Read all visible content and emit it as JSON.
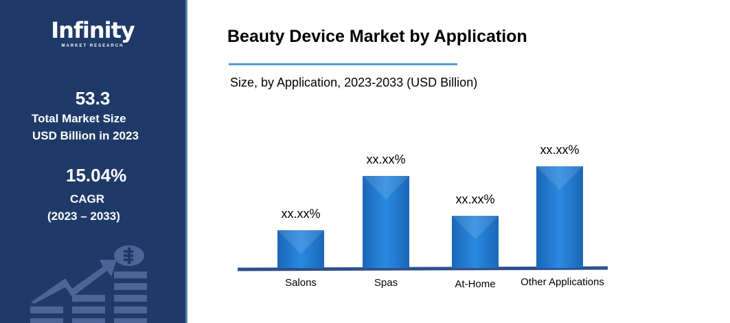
{
  "sidebar": {
    "logo": {
      "name": "Infinity",
      "tagline": "MARKET RESEARCH"
    },
    "market_size": {
      "value": "53.3",
      "label1": "Total Market Size",
      "label2": "USD Billion in 2023"
    },
    "cagr": {
      "value": "15.04%",
      "label": "CAGR",
      "period": "(2023 – 2033)"
    }
  },
  "chart_data": {
    "type": "bar",
    "title": "Beauty Device Market by Application",
    "subtitle": "Size, by Application, 2023-2033 (USD Billion)",
    "categories": [
      "Salons",
      "Spas",
      "At-Home",
      "Other Applications"
    ],
    "values": [
      55,
      134,
      76,
      148
    ],
    "data_labels": [
      "xx.xx%",
      "xx.xx%",
      "xx.xx%",
      "xx.xx%"
    ],
    "ylim": [
      0,
      160
    ],
    "xlabel": "",
    "ylabel": "",
    "grid": false,
    "colors": {
      "bar": "#1f7bd0",
      "axis": "#2f4f8f",
      "accent_line": "#5b9bd5"
    }
  }
}
